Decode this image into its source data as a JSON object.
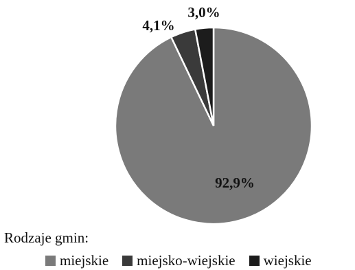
{
  "chart_data": {
    "type": "pie",
    "categories": [
      "miejskie",
      "miejsko-wiejskie",
      "wiejskie"
    ],
    "values": [
      92.9,
      4.1,
      3.0
    ],
    "data_labels": [
      "92,9%",
      "4,1%",
      "3,0%"
    ],
    "colors": [
      "#7a7a7a",
      "#3a3a3a",
      "#1c1c1c"
    ],
    "legend_title": "Rodzaje gmin:",
    "legend_placement": "bottom"
  }
}
